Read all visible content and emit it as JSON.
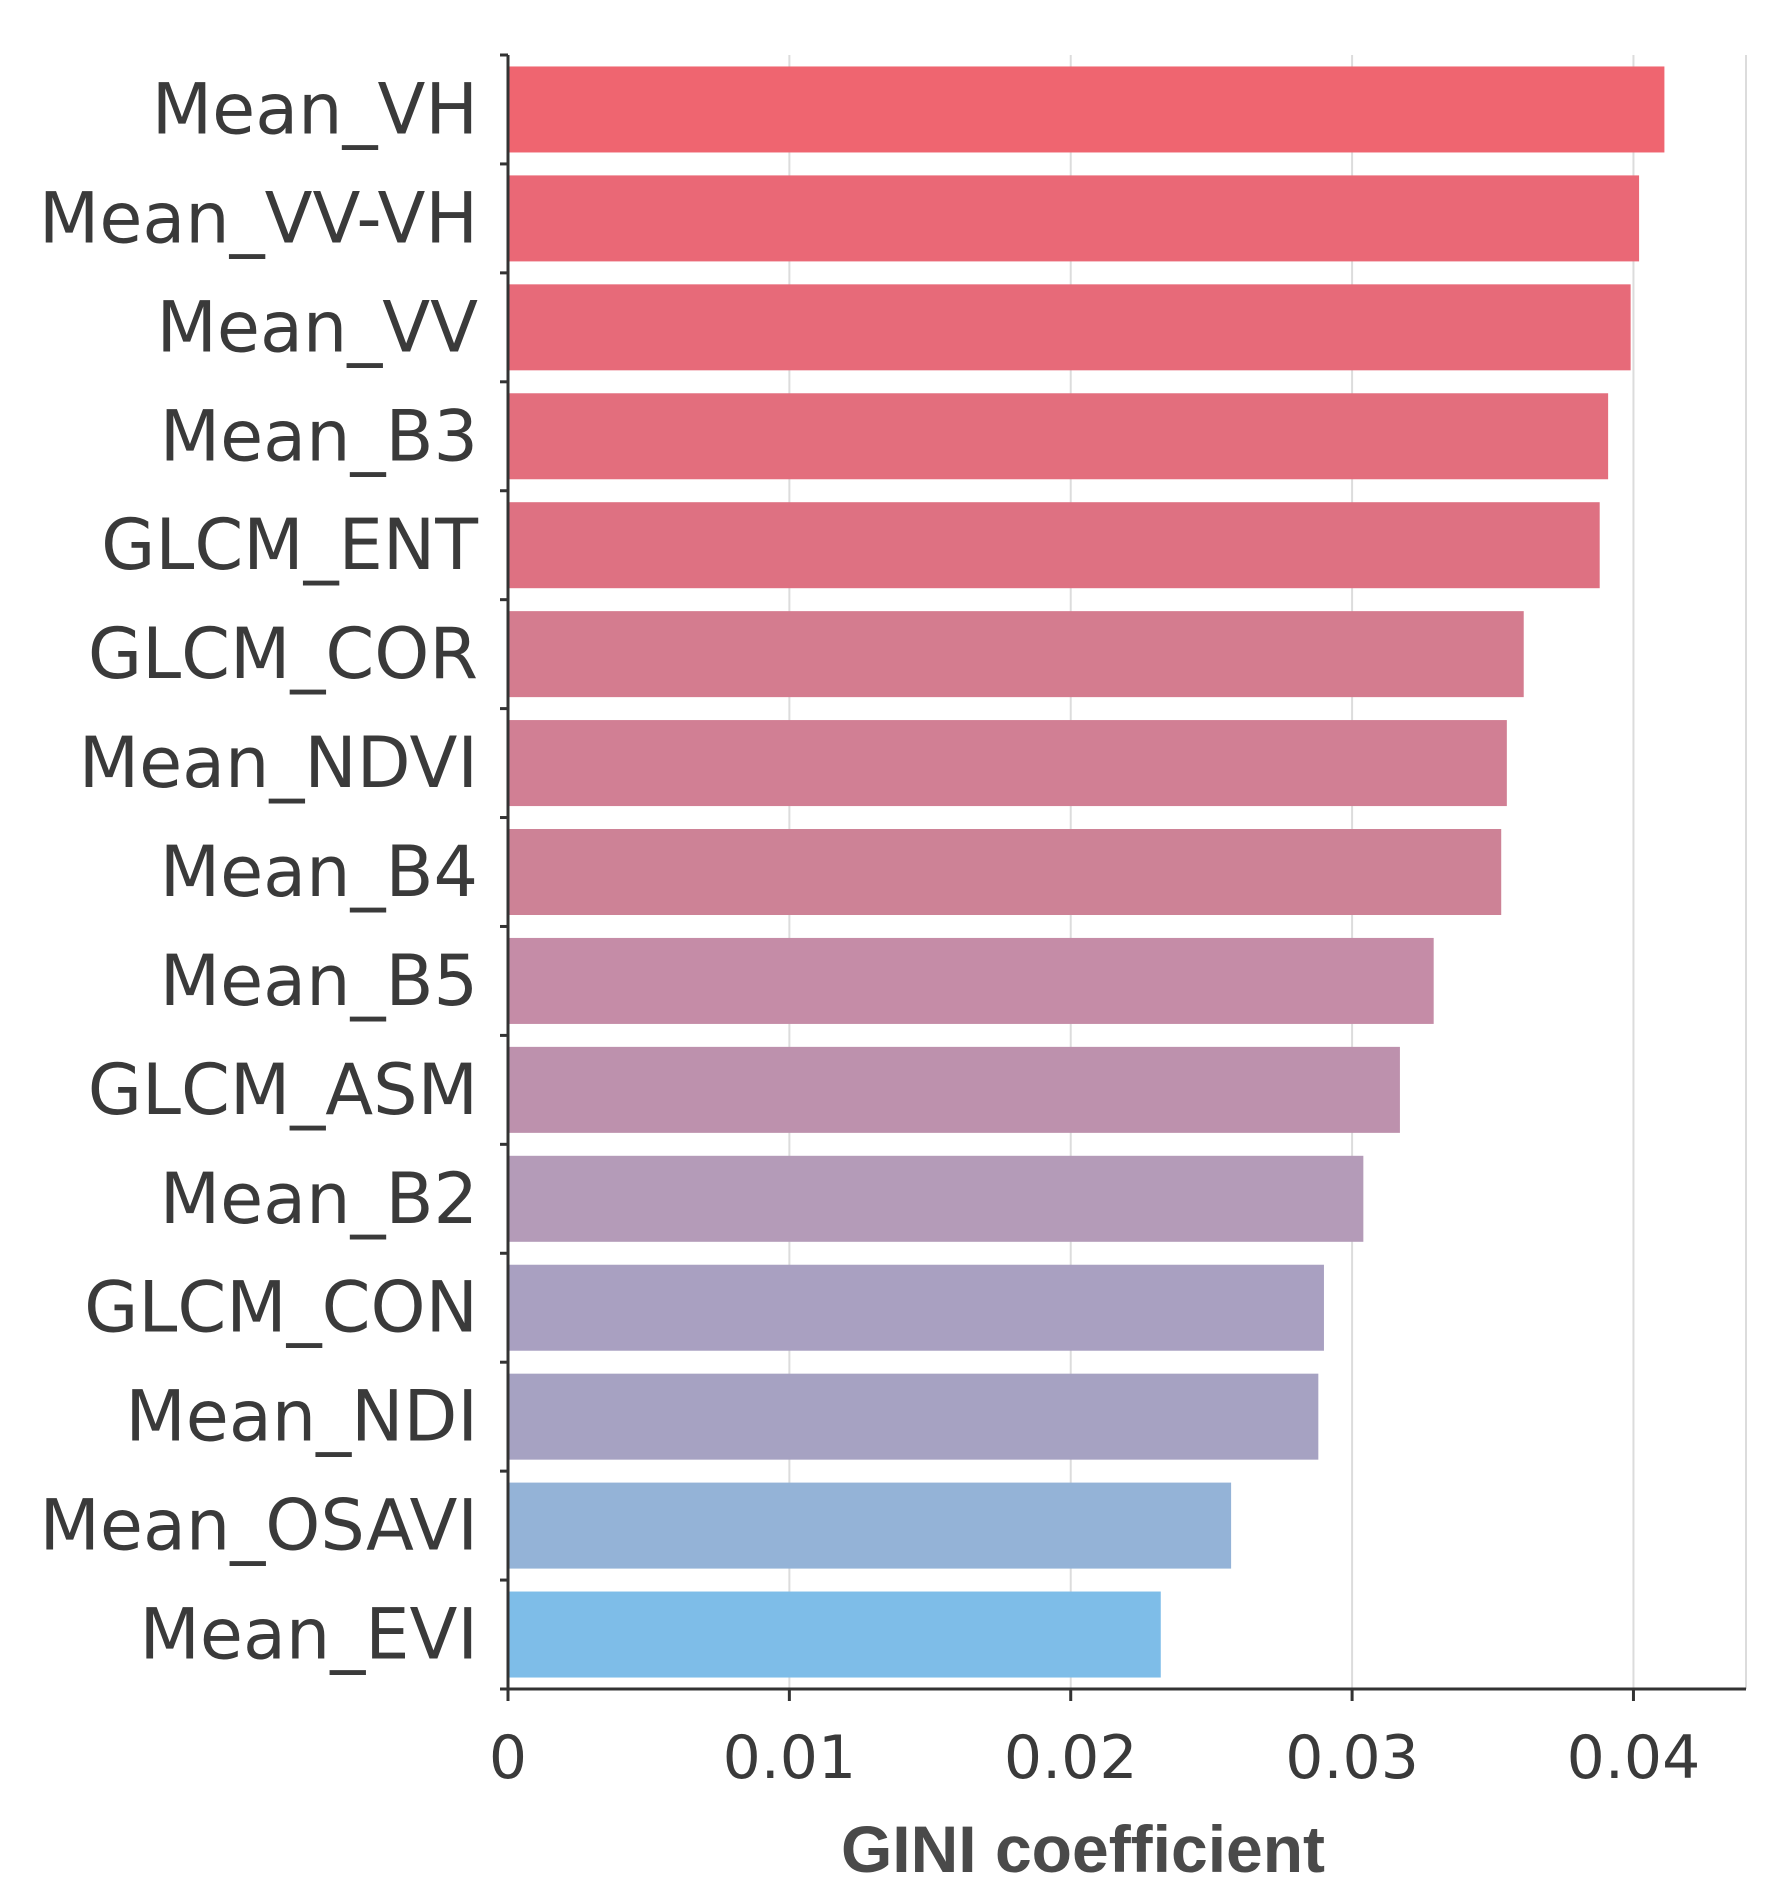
{
  "chart_data": {
    "type": "bar",
    "orientation": "horizontal",
    "title": "",
    "xlabel": "GINI coefficient",
    "ylabel": "",
    "xlim": [
      0,
      0.044
    ],
    "grid": true,
    "x_ticks": [
      0,
      0.01,
      0.02,
      0.03,
      0.04
    ],
    "x_tick_labels": [
      "0",
      "0.01",
      "0.02",
      "0.03",
      "0.04"
    ],
    "categories": [
      "Mean_VH",
      "Mean_VV-VH",
      "Mean_VV",
      "Mean_B3",
      "GLCM_ENT",
      "GLCM_COR",
      "Mean_NDVI",
      "Mean_B4",
      "Mean_B5",
      "GLCM_ASM",
      "Mean_B2",
      "GLCM_CON",
      "Mean_NDI",
      "Mean_OSAVI",
      "Mean_EVI"
    ],
    "values": [
      0.0411,
      0.0402,
      0.0399,
      0.0391,
      0.0388,
      0.0361,
      0.0355,
      0.0353,
      0.0329,
      0.0317,
      0.0304,
      0.029,
      0.0288,
      0.0257,
      0.0232
    ],
    "colors": [
      "#ef6570",
      "#ea6876",
      "#e76a79",
      "#e36e7d",
      "#de7182",
      "#d47c8f",
      "#d17f94",
      "#cd8296",
      "#c58ca7",
      "#bd91ad",
      "#b49bb8",
      "#a9a0c1",
      "#a6a2c2",
      "#94b3d7",
      "#7ebde8"
    ]
  }
}
